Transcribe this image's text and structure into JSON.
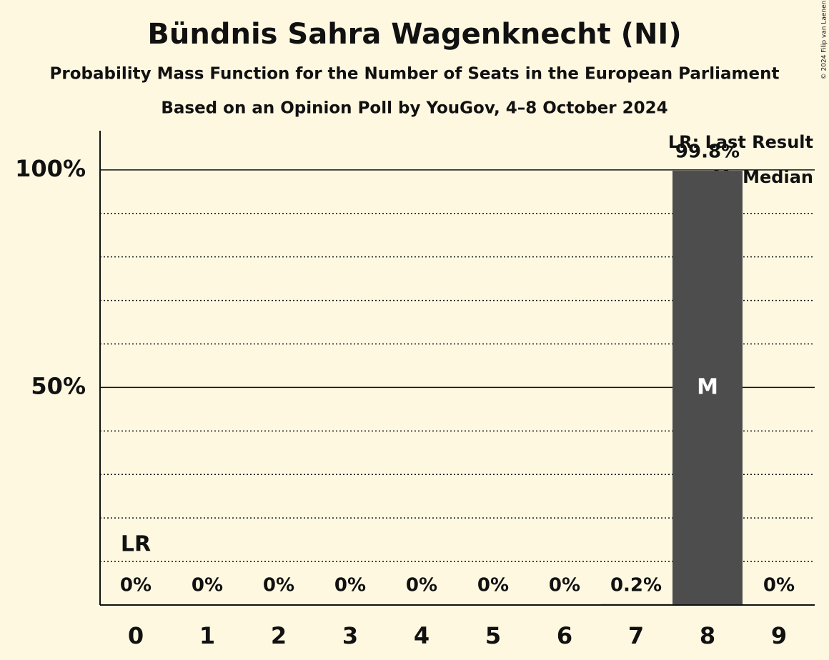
{
  "chart_data": {
    "type": "bar",
    "title": "Bündnis Sahra Wagenknecht (NI)",
    "subtitle": "Probability Mass Function for the Number of Seats in the European Parliament",
    "subtitle2": "Based on an Opinion Poll by YouGov, 4–8 October 2024",
    "copyright": "© 2024 Filip van Laenen",
    "categories": [
      "0",
      "1",
      "2",
      "3",
      "4",
      "5",
      "6",
      "7",
      "8",
      "9"
    ],
    "values": [
      0,
      0,
      0,
      0,
      0,
      0,
      0,
      0.2,
      99.8,
      0
    ],
    "value_labels": [
      "0%",
      "0%",
      "0%",
      "0%",
      "0%",
      "0%",
      "0%",
      "0.2%",
      "99.8%",
      "0%"
    ],
    "color": "#4d4d4d",
    "ylim": [
      0,
      109
    ],
    "yticks": [
      {
        "value": 50,
        "label": "50%"
      },
      {
        "value": 100,
        "label": "100%"
      }
    ],
    "minor_yticks": [
      10,
      20,
      30,
      40,
      60,
      70,
      80,
      90
    ],
    "grid": true,
    "annotations": [
      {
        "text": "LR",
        "category": "0"
      },
      {
        "text": "M",
        "category": "8"
      }
    ],
    "legend": [
      "LR: Last Result",
      "M: Median"
    ]
  }
}
